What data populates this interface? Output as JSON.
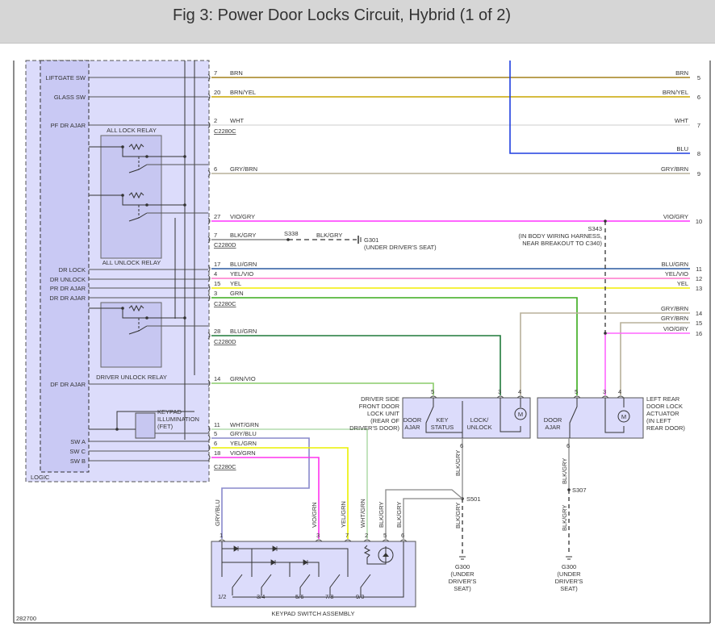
{
  "title": "Fig 3: Power Door Locks Circuit, Hybrid (1 of 2)",
  "figure_code": "282700",
  "module": {
    "logic_label": "LOGIC",
    "inputs": [
      "LIFTGATE SW",
      "GLASS SW",
      "PF DR AJAR",
      "DR LOCK",
      "DR UNLOCK",
      "PR DR AJAR",
      "DR DR AJAR",
      "DF DR AJAR",
      "SW A",
      "SW C",
      "SW B"
    ],
    "relays": [
      "ALL LOCK RELAY",
      "ALL UNLOCK RELAY",
      "DRIVER UNLOCK RELAY"
    ],
    "fet": [
      "KEYPAD",
      "ILLUMINATION",
      "(FET)"
    ]
  },
  "connectors": [
    "C2280C",
    "C2280D",
    "C2280C",
    "C2280D",
    "C2280C"
  ],
  "wires": [
    {
      "pin": "7",
      "color_name": "BRN",
      "color": "#a3801c",
      "right_label": "BRN",
      "right_pin": "5"
    },
    {
      "pin": "20",
      "color_name": "BRN/YEL",
      "color": "#c9a600",
      "right_label": "BRN/YEL",
      "right_pin": "6"
    },
    {
      "pin": "2",
      "color_name": "WHT",
      "color": "#dddddd",
      "right_label": "WHT",
      "right_pin": "7"
    },
    {
      "pin": "",
      "color_name": "",
      "color": "#1f3fe0",
      "right_label": "BLU",
      "right_pin": "8"
    },
    {
      "pin": "6",
      "color_name": "GRY/BRN",
      "color": "#b8b09a",
      "right_label": "GRY/BRN",
      "right_pin": "9"
    },
    {
      "pin": "27",
      "color_name": "VIO/GRY",
      "color": "#ff33ff",
      "right_label": "VIO/GRY",
      "right_pin": "10"
    },
    {
      "pin": "7",
      "color_name": "BLK/GRY",
      "color": "#888888"
    },
    {
      "pin": "17",
      "color_name": "BLU/GRN",
      "color": "#2a5aa0",
      "right_label": "BLU/GRN",
      "right_pin": "11"
    },
    {
      "pin": "4",
      "color_name": "YEL/VIO",
      "color": "#ff77cc",
      "right_label": "YEL/VIO",
      "right_pin": "12"
    },
    {
      "pin": "15",
      "color_name": "YEL",
      "color": "#f2ee00",
      "right_label": "YEL",
      "right_pin": "13"
    },
    {
      "pin": "3",
      "color_name": "GRN",
      "color": "#3aab1c"
    },
    {
      "pin": "",
      "color_name": "",
      "color": "#b8b09a",
      "right_label": "GRY/BRN",
      "right_pin": "14"
    },
    {
      "pin": "",
      "color_name": "",
      "color": "#b8b09a",
      "right_label": "GRY/BRN",
      "right_pin": "15"
    },
    {
      "pin": "",
      "color_name": "",
      "color": "#ff66ff",
      "right_label": "VIO/GRY",
      "right_pin": "16"
    },
    {
      "pin": "28",
      "color_name": "BLU/GRN",
      "color": "#1f7a3a"
    },
    {
      "pin": "14",
      "color_name": "GRN/VIO",
      "color": "#8acb6a"
    },
    {
      "pin": "11",
      "color_name": "WHT/GRN",
      "color": "#b4dcae"
    },
    {
      "pin": "5",
      "color_name": "GRY/BLU",
      "color": "#8888cc"
    },
    {
      "pin": "6",
      "color_name": "YEL/GRN",
      "color": "#eaf000"
    },
    {
      "pin": "18",
      "color_name": "VIO/GRN",
      "color": "#ff33ee"
    }
  ],
  "splices": {
    "s338": "S338",
    "s338_wire": "BLK/GRY",
    "g301": "G301",
    "g301_loc": "(UNDER DRIVER'S SEAT)",
    "s343": "S343",
    "s343_loc": [
      "(IN BODY WIRING HARNESS,",
      "NEAR BREAKOUT TO C340)"
    ],
    "s501": "S501",
    "s307": "S307",
    "g300": [
      "G300",
      "(UNDER",
      "DRIVER'S",
      "SEAT)"
    ]
  },
  "front_door": {
    "name": [
      "DRIVER SIDE",
      "FRONT DOOR",
      "LOCK UNIT",
      "(REAR OF",
      "DRIVER'S DOOR)"
    ],
    "sections": [
      "DOOR",
      "AJAR",
      "KEY",
      "STATUS",
      "LOCK/",
      "UNLOCK"
    ],
    "motor": "M",
    "pins": [
      {
        "pin": "5"
      },
      {
        "pin": "3",
        "wire": "BLU/GRN"
      },
      {
        "pin": "4",
        "wire": "GRY/BRN"
      },
      {
        "pin": "6",
        "wire": "BLK/GRY"
      }
    ]
  },
  "rear_door": {
    "name": [
      "LEFT REAR",
      "DOOR LOCK",
      "ACTUATOR",
      "(IN LEFT",
      "REAR DOOR)"
    ],
    "sections": [
      "DOOR",
      "AJAR"
    ],
    "motor": "M",
    "pins": [
      {
        "pin": "5",
        "wire": "GRN"
      },
      {
        "pin": "3",
        "wire": "VIO/GRY"
      },
      {
        "pin": "4",
        "wire": "GRY/BRN"
      },
      {
        "pin": "6",
        "wire": "BLK/GRY"
      }
    ]
  },
  "ground_wires": [
    "BLK/GRY",
    "BLK/GRY"
  ],
  "keypad": {
    "name": "KEYPAD SWITCH ASSEMBLY",
    "buttons": [
      "1/2",
      "3/4",
      "5/6",
      "7/8",
      "9/0"
    ],
    "pins": [
      {
        "pin": "1",
        "wire": "GRY/BLU"
      },
      {
        "pin": "3",
        "wire": "VIO/GRN"
      },
      {
        "pin": "7",
        "wire": "YEL/GRN"
      },
      {
        "pin": "2",
        "wire": "WHT/GRN"
      },
      {
        "pin": "5",
        "wire": "BLK/GRY"
      },
      {
        "pin": "6",
        "wire": "BLK/GRY"
      }
    ]
  }
}
